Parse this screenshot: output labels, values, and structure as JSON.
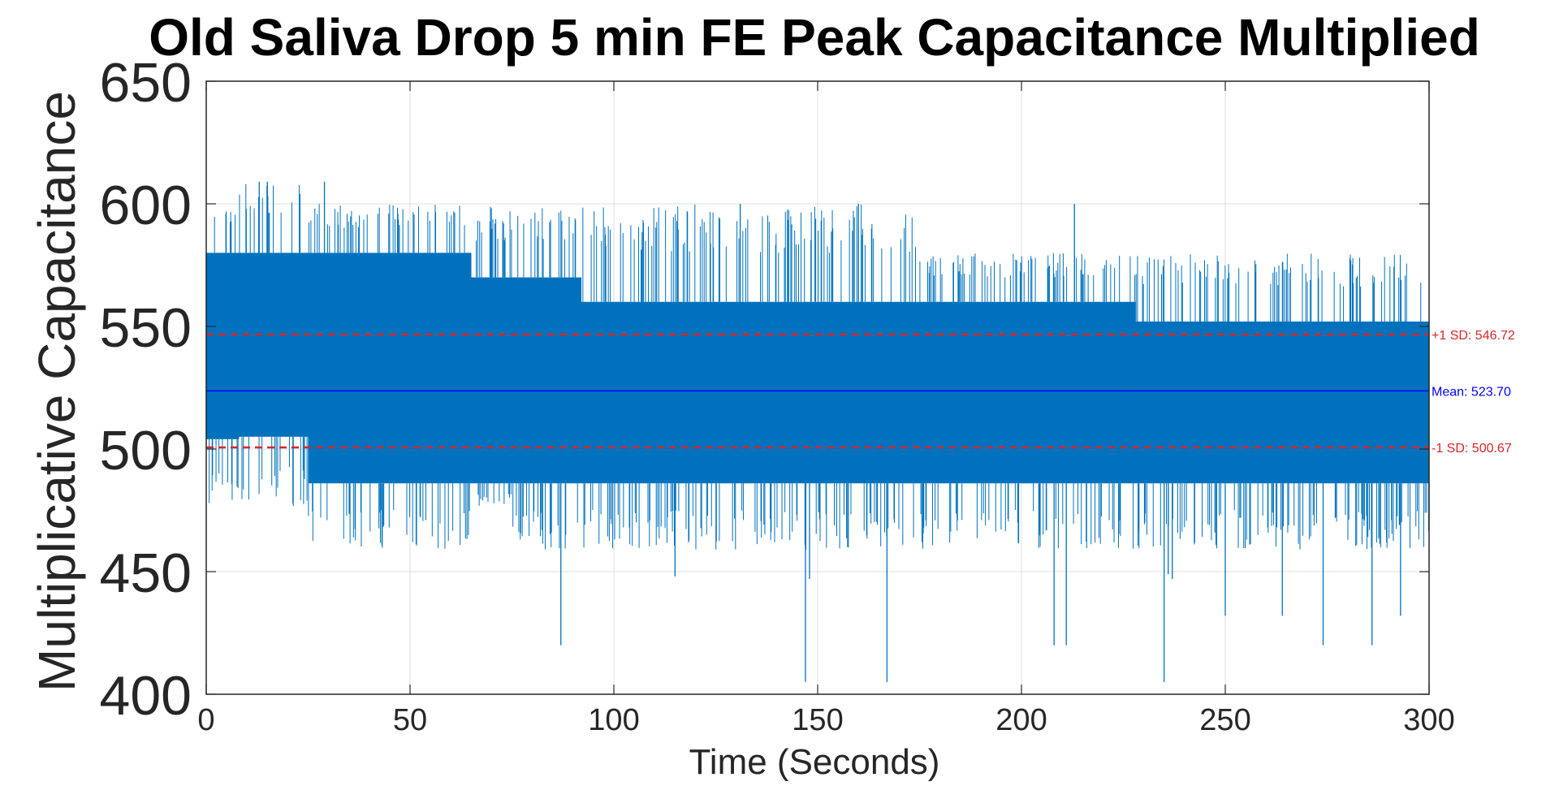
{
  "chart_data": {
    "type": "line",
    "title": "Old Saliva Drop 5 min FE Peak Capacitance Multiplied",
    "xlabel": "Time (Seconds)",
    "ylabel": "Multiplicative Capacitance",
    "xlim": [
      0,
      300
    ],
    "ylim": [
      400,
      650
    ],
    "x_ticks": [
      0,
      50,
      100,
      150,
      200,
      250,
      300
    ],
    "y_ticks": [
      400,
      450,
      500,
      550,
      600,
      650
    ],
    "x_tick_labels": [
      "0",
      "50",
      "100",
      "150",
      "200",
      "250",
      "300"
    ],
    "y_tick_labels": [
      "400",
      "450",
      "500",
      "550",
      "600",
      "650"
    ],
    "grid": true,
    "series": [
      {
        "color": "#0072BD",
        "sampling_interval_s": 0.04,
        "segments": [
          {
            "x_start": 0,
            "x_end": 8,
            "band_low": 504,
            "band_high": 580,
            "rare_high": 600,
            "rare_low": 476
          },
          {
            "x_start": 8,
            "x_end": 25,
            "band_low": 505,
            "band_high": 580,
            "rare_high": 609,
            "rare_low": 476
          },
          {
            "x_start": 25,
            "x_end": 65,
            "band_low": 486,
            "band_high": 580,
            "rare_high": 600,
            "rare_low": 459
          },
          {
            "x_start": 65,
            "x_end": 75,
            "band_low": 486,
            "band_high": 570,
            "rare_high": 600,
            "rare_low": 476
          },
          {
            "x_start": 75,
            "x_end": 92,
            "band_low": 486,
            "band_high": 570,
            "rare_high": 600,
            "rare_low": 459
          },
          {
            "x_start": 92,
            "x_end": 175,
            "band_low": 486,
            "band_high": 560,
            "rare_high": 600,
            "rare_low": 459
          },
          {
            "x_start": 175,
            "x_end": 228,
            "band_low": 486,
            "band_high": 560,
            "rare_high": 580,
            "rare_low": 459
          },
          {
            "x_start": 228,
            "x_end": 300,
            "band_low": 486,
            "band_high": 552,
            "rare_high": 580,
            "rare_low": 459
          }
        ],
        "spikes": [
          {
            "x": 13,
            "y": 609
          },
          {
            "x": 15,
            "y": 609
          },
          {
            "x": 29,
            "y": 609
          },
          {
            "x": 213,
            "y": 600
          },
          {
            "x": 160,
            "y": 600
          },
          {
            "x": 131,
            "y": 600
          },
          {
            "x": 87,
            "y": 420
          },
          {
            "x": 147,
            "y": 405
          },
          {
            "x": 167,
            "y": 405
          },
          {
            "x": 235,
            "y": 405
          },
          {
            "x": 208,
            "y": 420
          },
          {
            "x": 211,
            "y": 420
          },
          {
            "x": 274,
            "y": 420
          },
          {
            "x": 286,
            "y": 420
          },
          {
            "x": 148,
            "y": 447
          },
          {
            "x": 115,
            "y": 448
          },
          {
            "x": 236,
            "y": 449
          },
          {
            "x": 250,
            "y": 432
          },
          {
            "x": 264,
            "y": 432
          },
          {
            "x": 293,
            "y": 432
          },
          {
            "x": 237,
            "y": 447
          }
        ]
      }
    ],
    "reference_lines": [
      {
        "y": 546.72,
        "label": "+1 SD: 546.72",
        "color": "#D62728",
        "style": "dashed"
      },
      {
        "y": 523.7,
        "label": "Mean: 523.70",
        "color": "#0000FF",
        "style": "solid"
      },
      {
        "y": 500.67,
        "label": "-1 SD: 500.67",
        "color": "#D62728",
        "style": "dashed"
      }
    ]
  }
}
